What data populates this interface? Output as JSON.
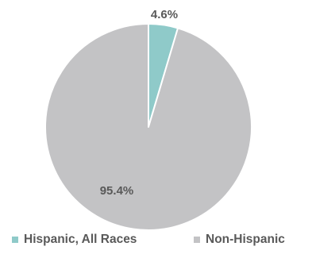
{
  "chart_data": {
    "type": "pie",
    "categories": [
      "Hispanic, All Races",
      "Non-Hispanic"
    ],
    "values": [
      4.6,
      95.4
    ],
    "data_labels": [
      "4.6%",
      "95.4%"
    ],
    "colors": [
      "#8fcac9",
      "#c3c3c5"
    ],
    "title": "",
    "legend_position": "bottom",
    "start_angle": "12 o'clock, clockwise"
  },
  "legend": {
    "items": [
      {
        "label": "Hispanic, All Races",
        "color": "#8fcac9"
      },
      {
        "label": "Non-Hispanic",
        "color": "#c3c3c5"
      }
    ]
  }
}
